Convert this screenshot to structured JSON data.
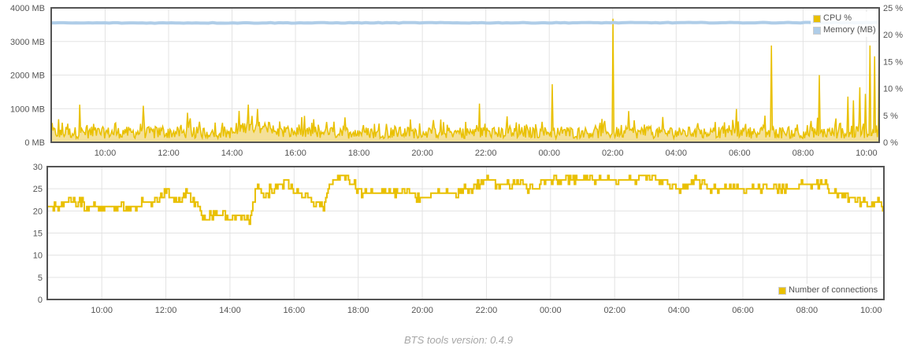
{
  "chart_data": [
    {
      "type": "line",
      "title": "",
      "x_ticks": [
        "10:00",
        "12:00",
        "14:00",
        "16:00",
        "18:00",
        "20:00",
        "22:00",
        "00:00",
        "02:00",
        "04:00",
        "06:00",
        "08:00",
        "10:00"
      ],
      "x_range_hours": [
        8.3,
        34.4
      ],
      "y_left": {
        "ticks": [
          "0 MB",
          "1000 MB",
          "2000 MB",
          "3000 MB",
          "4000 MB"
        ],
        "range": [
          0,
          4000
        ],
        "unit": "MB"
      },
      "y_right": {
        "ticks": [
          "0 %",
          "5 %",
          "10 %",
          "15 %",
          "20 %",
          "25 %"
        ],
        "range": [
          0,
          25
        ],
        "unit": "%"
      },
      "grid": true,
      "legend_position": "top-right",
      "series": [
        {
          "name": "CPU %",
          "axis": "right",
          "color": "#e9c000",
          "fill": "#f3dd8e",
          "baseline": 1.8,
          "spikes": [
            {
              "x": 9.2,
              "y": 7.0
            },
            {
              "x": 11.2,
              "y": 6.8
            },
            {
              "x": 12.6,
              "y": 5.5
            },
            {
              "x": 14.5,
              "y": 7.0
            },
            {
              "x": 14.8,
              "y": 6.2
            },
            {
              "x": 21.8,
              "y": 7.2
            },
            {
              "x": 24.1,
              "y": 10.8
            },
            {
              "x": 26.0,
              "y": 23.0
            },
            {
              "x": 26.5,
              "y": 5.8
            },
            {
              "x": 29.9,
              "y": 6.2
            },
            {
              "x": 31.0,
              "y": 18.0
            },
            {
              "x": 32.5,
              "y": 12.5
            },
            {
              "x": 33.4,
              "y": 8.5
            },
            {
              "x": 33.6,
              "y": 7.8
            },
            {
              "x": 33.8,
              "y": 10.2
            },
            {
              "x": 33.95,
              "y": 9.0
            },
            {
              "x": 34.1,
              "y": 18.0
            },
            {
              "x": 34.25,
              "y": 16.0
            },
            {
              "x": 34.4,
              "y": 18.8
            }
          ]
        },
        {
          "name": "Memory (MB)",
          "axis": "left",
          "color": "#afcde8",
          "start": 3550,
          "end": 3560
        }
      ]
    },
    {
      "type": "line",
      "title": "",
      "x_ticks": [
        "10:00",
        "12:00",
        "14:00",
        "16:00",
        "18:00",
        "20:00",
        "22:00",
        "00:00",
        "02:00",
        "04:00",
        "06:00",
        "08:00",
        "10:00"
      ],
      "x_range_hours": [
        8.3,
        34.4
      ],
      "y": {
        "ticks": [
          "0",
          "5",
          "10",
          "15",
          "20",
          "25",
          "30"
        ],
        "range": [
          0,
          30
        ]
      },
      "grid": true,
      "legend_position": "bottom-right",
      "series": [
        {
          "name": "Number of connections",
          "color": "#e9c000",
          "points": [
            [
              8.3,
              21
            ],
            [
              8.6,
              21
            ],
            [
              8.9,
              22
            ],
            [
              9.3,
              22
            ],
            [
              9.6,
              21
            ],
            [
              10.0,
              21
            ],
            [
              10.5,
              21
            ],
            [
              11.0,
              21
            ],
            [
              11.3,
              22
            ],
            [
              11.7,
              22
            ],
            [
              12.0,
              24
            ],
            [
              12.3,
              22
            ],
            [
              12.7,
              24
            ],
            [
              12.9,
              22
            ],
            [
              13.2,
              18
            ],
            [
              13.5,
              19
            ],
            [
              14.0,
              19
            ],
            [
              14.4,
              19
            ],
            [
              14.6,
              17
            ],
            [
              14.8,
              25
            ],
            [
              15.1,
              24
            ],
            [
              15.5,
              26
            ],
            [
              15.8,
              26
            ],
            [
              16.0,
              24
            ],
            [
              16.3,
              24
            ],
            [
              16.6,
              22
            ],
            [
              16.9,
              21
            ],
            [
              17.1,
              26
            ],
            [
              17.4,
              28
            ],
            [
              17.8,
              26
            ],
            [
              18.2,
              24
            ],
            [
              18.8,
              24
            ],
            [
              19.5,
              24
            ],
            [
              20.0,
              23
            ],
            [
              20.5,
              24
            ],
            [
              21.0,
              24
            ],
            [
              21.5,
              25
            ],
            [
              22.0,
              27
            ],
            [
              22.5,
              26
            ],
            [
              23.0,
              26
            ],
            [
              23.5,
              25
            ],
            [
              24.0,
              27
            ],
            [
              24.5,
              27
            ],
            [
              25.0,
              27
            ],
            [
              25.5,
              27
            ],
            [
              26.0,
              27
            ],
            [
              26.5,
              27
            ],
            [
              27.0,
              28
            ],
            [
              27.5,
              27
            ],
            [
              28.0,
              25
            ],
            [
              28.5,
              27
            ],
            [
              29.0,
              25
            ],
            [
              29.5,
              25
            ],
            [
              30.0,
              25
            ],
            [
              30.5,
              25
            ],
            [
              31.0,
              25
            ],
            [
              31.5,
              25
            ],
            [
              32.0,
              26
            ],
            [
              32.5,
              26
            ],
            [
              33.0,
              24
            ],
            [
              33.5,
              23
            ],
            [
              33.8,
              22
            ],
            [
              34.0,
              21
            ],
            [
              34.2,
              22
            ],
            [
              34.4,
              21
            ]
          ]
        }
      ]
    }
  ],
  "footer": {
    "text": "BTS tools version: 0.4.9"
  }
}
